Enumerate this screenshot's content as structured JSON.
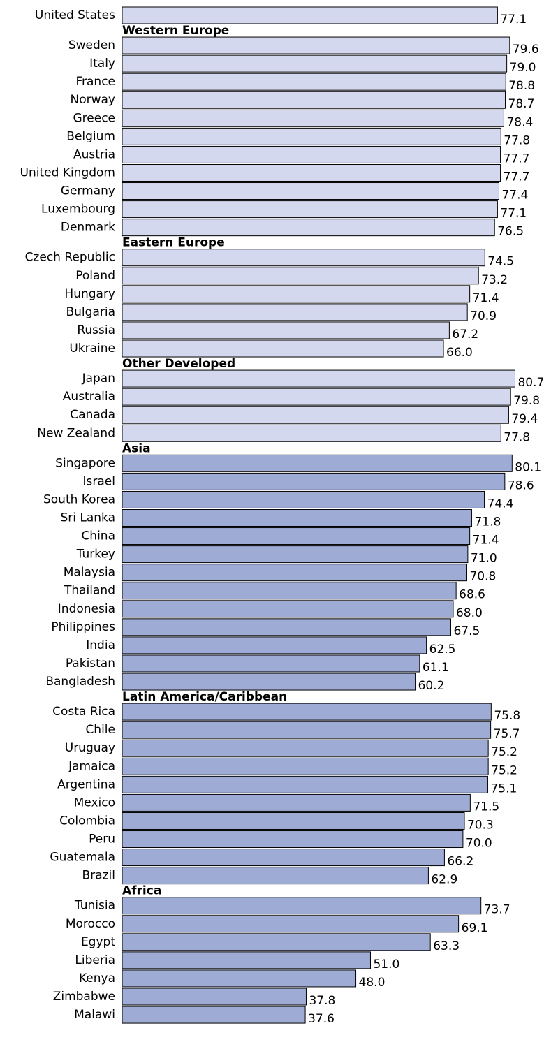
{
  "chart_data": {
    "type": "bar",
    "orientation": "horizontal",
    "colors": {
      "developed": "#d4d8ee",
      "developing": "#9eabd4",
      "outline": "#000000"
    },
    "groups": [
      {
        "heading": "",
        "color_key": "developed",
        "items": [
          {
            "label": "United States",
            "value_label": "77.1",
            "value": 77.1
          }
        ]
      },
      {
        "heading": "Western Europe",
        "color_key": "developed",
        "items": [
          {
            "label": "Sweden",
            "value_label": "79.6",
            "value": 79.6
          },
          {
            "label": "Italy",
            "value_label": "79.0",
            "value": 79.0
          },
          {
            "label": "France",
            "value_label": "78.8",
            "value": 78.8
          },
          {
            "label": "Norway",
            "value_label": "78.7",
            "value": 78.7
          },
          {
            "label": "Greece",
            "value_label": "78.4",
            "value": 78.4
          },
          {
            "label": "Belgium",
            "value_label": "77.8",
            "value": 77.8
          },
          {
            "label": "Austria",
            "value_label": "77.7",
            "value": 77.7
          },
          {
            "label": "United Kingdom",
            "value_label": "77.7",
            "value": 77.7
          },
          {
            "label": "Germany",
            "value_label": "77.4",
            "value": 77.4
          },
          {
            "label": "Luxembourg",
            "value_label": "77.1",
            "value": 77.1
          },
          {
            "label": "Denmark",
            "value_label": "76.5",
            "value": 76.5
          }
        ]
      },
      {
        "heading": "Eastern Europe",
        "color_key": "developed",
        "items": [
          {
            "label": "Czech Republic",
            "value_label": "74.5",
            "value": 74.5
          },
          {
            "label": "Poland",
            "value_label": "73.2",
            "value": 73.2
          },
          {
            "label": "Hungary",
            "value_label": "71.4",
            "value": 71.4
          },
          {
            "label": "Bulgaria",
            "value_label": "70.9",
            "value": 70.9
          },
          {
            "label": "Russia",
            "value_label": "67.2",
            "value": 67.2
          },
          {
            "label": "Ukraine",
            "value_label": "66.0",
            "value": 66.0
          }
        ]
      },
      {
        "heading": "Other Developed",
        "color_key": "developed",
        "items": [
          {
            "label": "Japan",
            "value_label": "80.7",
            "value": 80.7
          },
          {
            "label": "Australia",
            "value_label": "79.8",
            "value": 79.8
          },
          {
            "label": "Canada",
            "value_label": "79.4",
            "value": 79.4
          },
          {
            "label": "New Zealand",
            "value_label": "77.8",
            "value": 77.8
          }
        ]
      },
      {
        "heading": "Asia",
        "color_key": "developing",
        "items": [
          {
            "label": "Singapore",
            "value_label": "80.1",
            "value": 80.1
          },
          {
            "label": "Israel",
            "value_label": "78.6",
            "value": 78.6
          },
          {
            "label": "South Korea",
            "value_label": "74.4",
            "value": 74.4
          },
          {
            "label": "Sri Lanka",
            "value_label": "71.8",
            "value": 71.8
          },
          {
            "label": "China",
            "value_label": "71.4",
            "value": 71.4
          },
          {
            "label": "Turkey",
            "value_label": "71.0",
            "value": 71.0
          },
          {
            "label": "Malaysia",
            "value_label": "70.8",
            "value": 70.8
          },
          {
            "label": "Thailand",
            "value_label": "68.6",
            "value": 68.6
          },
          {
            "label": "Indonesia",
            "value_label": "68.0",
            "value": 68.0
          },
          {
            "label": "Philippines",
            "value_label": "67.5",
            "value": 67.5
          },
          {
            "label": "India",
            "value_label": "62.5",
            "value": 62.5
          },
          {
            "label": "Pakistan",
            "value_label": "61.1",
            "value": 61.1
          },
          {
            "label": "Bangladesh",
            "value_label": "60.2",
            "value": 60.2
          }
        ]
      },
      {
        "heading": "Latin America/Caribbean",
        "color_key": "developing",
        "items": [
          {
            "label": "Costa Rica",
            "value_label": "75.8",
            "value": 75.8
          },
          {
            "label": "Chile",
            "value_label": "75.7",
            "value": 75.7
          },
          {
            "label": "Uruguay",
            "value_label": "75.2",
            "value": 75.2
          },
          {
            "label": "Jamaica",
            "value_label": "75.2",
            "value": 75.2
          },
          {
            "label": "Argentina",
            "value_label": "75.1",
            "value": 75.1
          },
          {
            "label": "Mexico",
            "value_label": "71.5",
            "value": 71.5
          },
          {
            "label": "Colombia",
            "value_label": "70.3",
            "value": 70.3
          },
          {
            "label": "Peru",
            "value_label": "70.0",
            "value": 70.0
          },
          {
            "label": "Guatemala",
            "value_label": "66.2",
            "value": 66.2
          },
          {
            "label": "Brazil",
            "value_label": "62.9",
            "value": 62.9
          }
        ]
      },
      {
        "heading": "Africa",
        "color_key": "developing",
        "items": [
          {
            "label": "Tunisia",
            "value_label": "73.7",
            "value": 73.7
          },
          {
            "label": "Morocco",
            "value_label": "69.1",
            "value": 69.1
          },
          {
            "label": "Egypt",
            "value_label": "63.3",
            "value": 63.3
          },
          {
            "label": "Liberia",
            "value_label": "51.0",
            "value": 51.0
          },
          {
            "label": "Kenya",
            "value_label": "48.0",
            "value": 48.0
          },
          {
            "label": "Zimbabwe",
            "value_label": "37.8",
            "value": 37.8
          },
          {
            "label": "Malawi",
            "value_label": "37.6",
            "value": 37.6
          }
        ]
      }
    ]
  }
}
